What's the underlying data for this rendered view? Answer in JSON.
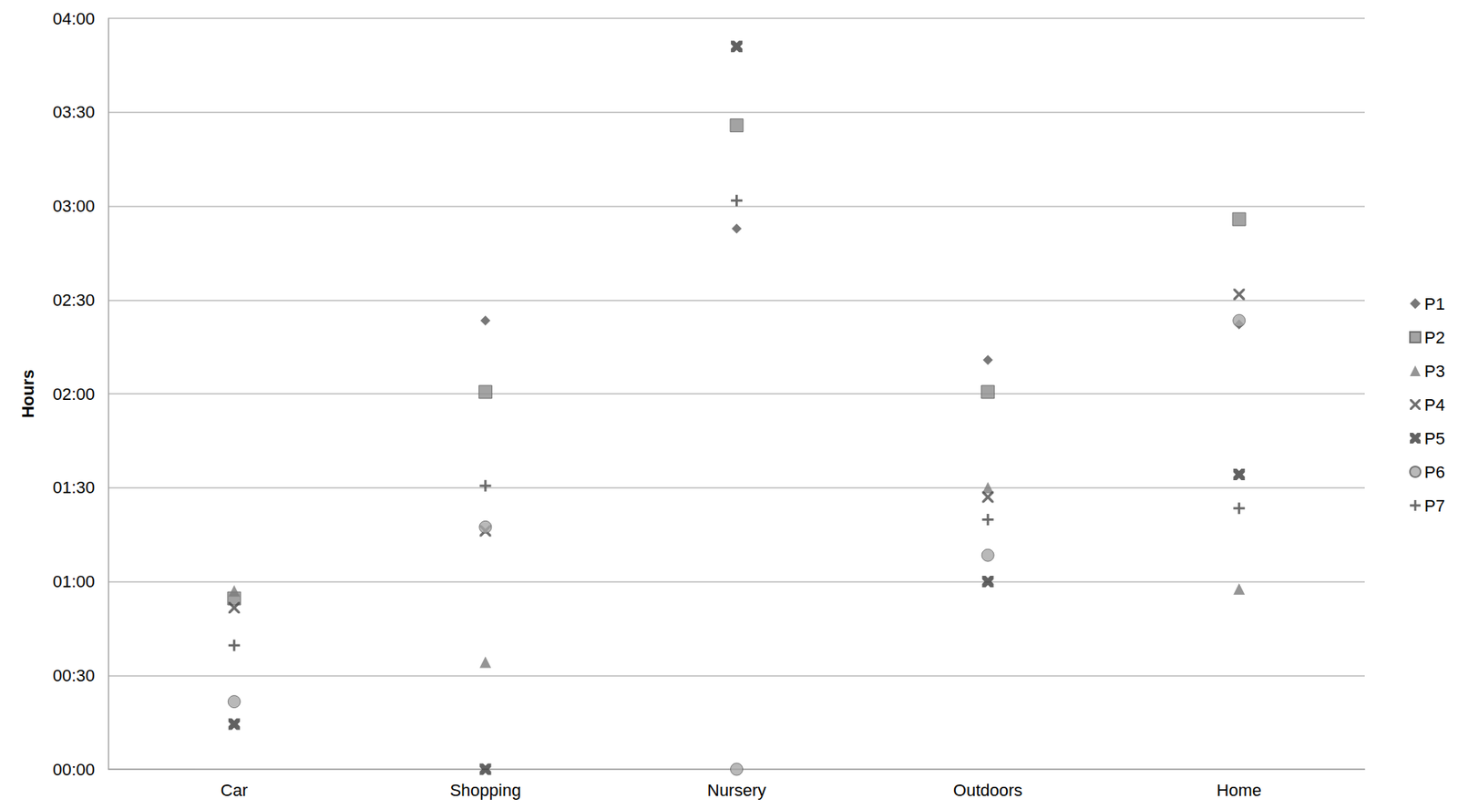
{
  "chart_data": {
    "type": "scatter",
    "y_label": "Hours",
    "categories": [
      "Car",
      "Shopping",
      "Nursery",
      "Outdoors",
      "Home"
    ],
    "ylim": [
      0,
      4
    ],
    "yticks": [
      {
        "value": 0,
        "label": "00:00"
      },
      {
        "value": 0.5,
        "label": "00:30"
      },
      {
        "value": 1,
        "label": "01:00"
      },
      {
        "value": 1.5,
        "label": "01:30"
      },
      {
        "value": 2,
        "label": "02:00"
      },
      {
        "value": 2.5,
        "label": "02:30"
      },
      {
        "value": 3,
        "label": "03:00"
      },
      {
        "value": 3.5,
        "label": "03:30"
      },
      {
        "value": 4,
        "label": "04:00"
      }
    ],
    "grid": true,
    "legend": "right",
    "series": [
      {
        "name": "P1",
        "color": "#555555",
        "marker": "diamond",
        "values": [
          null,
          2.39,
          2.88,
          2.18,
          2.37
        ]
      },
      {
        "name": "P2",
        "color": "#8c8c8c",
        "marker": "square",
        "values": [
          0.91,
          2.01,
          3.43,
          2.01,
          2.93
        ]
      },
      {
        "name": "P3",
        "color": "#7a7a7a",
        "marker": "triangle",
        "values": [
          0.95,
          0.57,
          null,
          1.5,
          0.96
        ]
      },
      {
        "name": "P4",
        "color": "#4a4a4a",
        "marker": "x",
        "values": [
          0.86,
          1.27,
          null,
          1.45,
          2.53
        ]
      },
      {
        "name": "P5",
        "color": "#3a3a3a",
        "marker": "thick_x",
        "values": [
          0.24,
          0,
          3.85,
          1,
          1.57
        ]
      },
      {
        "name": "P6",
        "color": "#a8a8a8",
        "marker": "circle",
        "values": [
          0.36,
          1.29,
          0,
          1.14,
          2.39
        ]
      },
      {
        "name": "P7",
        "color": "#444444",
        "marker": "plus",
        "values": [
          0.66,
          1.51,
          3.03,
          1.33,
          1.39
        ]
      }
    ]
  }
}
